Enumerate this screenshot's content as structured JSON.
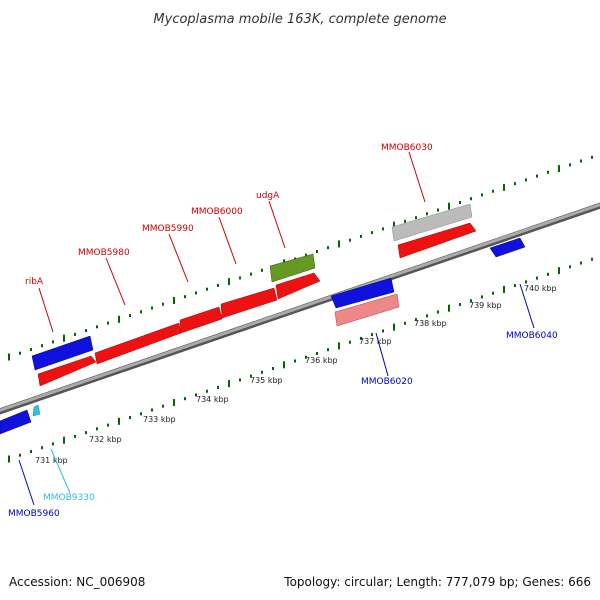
{
  "title": "Mycoplasma mobile 163K, complete genome",
  "footer": {
    "accession": "Accession: NC_006908",
    "stats": "Topology: circular; Length: 777,079 bp; Genes: 666"
  },
  "colors": {
    "forward_gene": "#ee1111",
    "reverse_gene": "#1111dd",
    "pseudo_gene": "#bbbbbb",
    "light_red_gene": "#ee8888",
    "rna_gene": "#669922",
    "small_feature": "#33bbee",
    "tick": "#006600",
    "backbone": "#888888"
  },
  "ticks": [
    {
      "label": "731 kbp"
    },
    {
      "label": "732 kbp"
    },
    {
      "label": "733 kbp"
    },
    {
      "label": "734 kbp"
    },
    {
      "label": "735 kbp"
    },
    {
      "label": "736 kbp"
    },
    {
      "label": "737 kbp"
    },
    {
      "label": "738 kbp"
    },
    {
      "label": "739 kbp"
    },
    {
      "label": "740 kbp"
    }
  ],
  "gene_labels": [
    {
      "text": "ribA",
      "color": "#cc0000"
    },
    {
      "text": "MMOB5980",
      "color": "#cc0000"
    },
    {
      "text": "MMOB5990",
      "color": "#cc0000"
    },
    {
      "text": "MMOB6000",
      "color": "#cc0000"
    },
    {
      "text": "udgA",
      "color": "#cc0000"
    },
    {
      "text": "MMOB6030",
      "color": "#cc0000"
    },
    {
      "text": "MMOB5960",
      "color": "#0000bb"
    },
    {
      "text": "MMOB9330",
      "color": "#33bbdd"
    },
    {
      "text": "MMOB6020",
      "color": "#0000bb"
    },
    {
      "text": "MMOB6040",
      "color": "#0000bb"
    }
  ]
}
